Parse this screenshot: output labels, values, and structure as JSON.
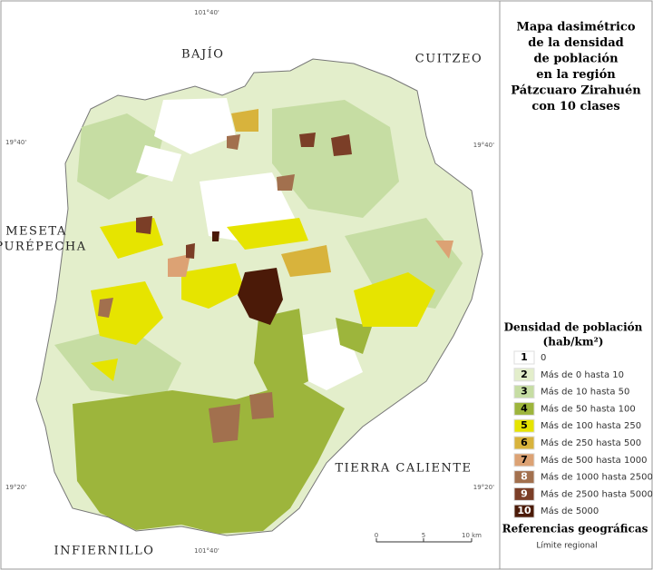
{
  "map": {
    "title": [
      "Mapa dasimétrico",
      "de la densidad",
      "de población",
      "en la región",
      "Pátzcuaro Zirahuén",
      "con 10 clases"
    ],
    "places": [
      "BAJÍO",
      "CUITZEO",
      "MESETA",
      "PURÉPECHA",
      "TIERRA CALIENTE",
      "INFIERNILLO"
    ],
    "coordinates": [
      "101°40'",
      "19°40'",
      "19°40'",
      "19°20'",
      "19°20'",
      "101°40'"
    ],
    "legend": {
      "title": "Densidad de población",
      "unit": "(hab/km²)",
      "items": [
        {
          "class": "1",
          "label": "0",
          "color": "#ffffff"
        },
        {
          "class": "2",
          "label": "Más de 0 hasta 10",
          "color": "#e3eecb"
        },
        {
          "class": "3",
          "label": "Más de 10 hasta 50",
          "color": "#c6dda3"
        },
        {
          "class": "4",
          "label": "Más de 50 hasta 100",
          "color": "#9db53c"
        },
        {
          "class": "5",
          "label": "Más de 100 hasta 250",
          "color": "#e6e400"
        },
        {
          "class": "6",
          "label": "Más de 250 hasta 500",
          "color": "#d8b33c"
        },
        {
          "class": "7",
          "label": "Más de 500 hasta 1000",
          "color": "#dca274"
        },
        {
          "class": "8",
          "label": "Más de 1000 hasta 2500",
          "color": "#a2704e"
        },
        {
          "class": "9",
          "label": "Más de 2500 hasta 5000",
          "color": "#7b3e27"
        },
        {
          "class": "10",
          "label": "Más de 5000",
          "color": "#4b1a08"
        }
      ]
    },
    "references": {
      "title": "Referencias geográficas",
      "items": [
        "Límite regional"
      ]
    },
    "scale": [
      "0",
      "5",
      "10 km"
    ]
  }
}
